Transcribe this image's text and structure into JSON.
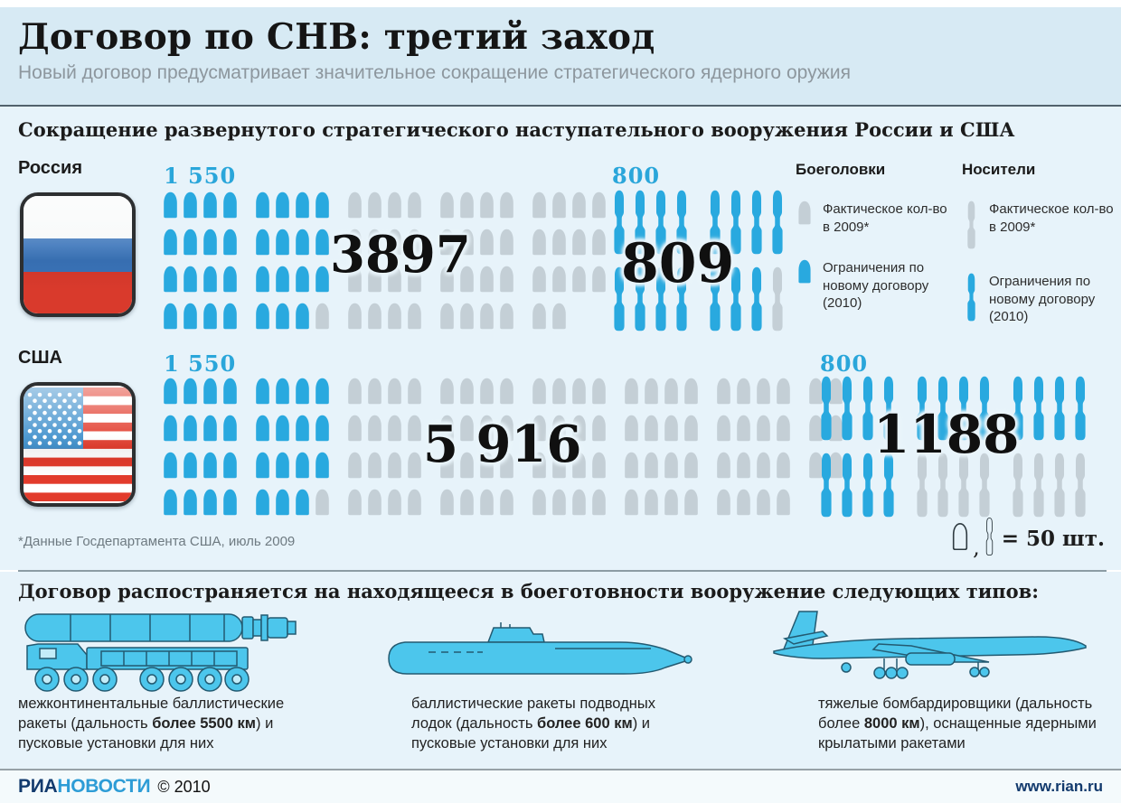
{
  "header": {
    "title": "Договор по СНВ: третий заход",
    "subtitle": "Новый договор предусматривает значительное сокращение стратегического ядерного оружия"
  },
  "section1": {
    "heading": "Сокращение развернутого стратегического наступательного вооружения России и США",
    "countries": [
      {
        "name": "Россия",
        "flag_icon": "russia-flag",
        "warheads": {
          "limit_label": "1 550",
          "actual_label": "3897",
          "rows": [
            [
              8,
              12
            ],
            [
              8,
              12
            ],
            [
              8,
              12
            ],
            [
              7,
              11
            ]
          ]
        },
        "carriers": {
          "limit_label": "800",
          "actual_label": "809",
          "rows": [
            [
              8,
              0
            ],
            [
              7,
              1
            ]
          ]
        }
      },
      {
        "name": "США",
        "flag_icon": "usa-flag",
        "warheads": {
          "limit_label": "1 550",
          "actual_label": "5 916",
          "rows": [
            [
              8,
              22
            ],
            [
              8,
              22
            ],
            [
              8,
              22
            ],
            [
              7,
              21
            ]
          ]
        },
        "carriers": {
          "limit_label": "800",
          "actual_label": "1188",
          "rows": [
            [
              12,
              0
            ],
            [
              4,
              8
            ]
          ]
        }
      }
    ],
    "legend": {
      "warheads_title": "Боеголовки",
      "carriers_title": "Носители",
      "actual_label": "Фактическое кол-во в 2009*",
      "limit_label": "Ограничения по новому договору (2010)",
      "icons": {
        "warhead": "warhead-icon",
        "carrier": "missile-icon"
      }
    },
    "footnote": "*Данные Госдепартамента США, июль 2009",
    "scale_note": {
      "comma": ",",
      "equals": "= 50 шт."
    }
  },
  "section2": {
    "heading": "Договор распостраняется на находящееся в боеготовности вооружение следующих типов:",
    "items": [
      {
        "icon": "icbm-launcher-icon",
        "caption": [
          {
            "t": "межконтинентальные баллистические ракеты (дальность "
          },
          {
            "t": "более 5500 км",
            "b": true
          },
          {
            "t": ") и пусковые установки для них"
          }
        ]
      },
      {
        "icon": "submarine-icon",
        "caption": [
          {
            "t": "баллистические ракеты подводных лодок (дальность "
          },
          {
            "t": "более 600 км",
            "b": true
          },
          {
            "t": ") и пусковые установки для них"
          }
        ]
      },
      {
        "icon": "heavy-bomber-icon",
        "caption": [
          {
            "t": "тяжелые бомбардировщики (дальность более "
          },
          {
            "t": "8000 км",
            "b": true
          },
          {
            "t": "), оснащенные ядерными крылатыми ракетами"
          }
        ]
      }
    ]
  },
  "footer": {
    "brand_ria": "РИА",
    "brand_novosti": "НОВОСТИ",
    "copyright": "© 2010",
    "site": "www.rian.ru"
  },
  "colors": {
    "accent_blue": "#29a9df",
    "icon_gray": "#c4cfd6",
    "limit_text": "#2aa6da",
    "vehicle_blue": "#4cc6ec"
  },
  "chart_data": {
    "type": "pictogram",
    "title": "Сокращение развернутого стратегического наступательного вооружения России и США",
    "unit_per_icon": 50,
    "categories": [
      "Россия",
      "США"
    ],
    "series": [
      {
        "name": "Боеголовки — фактическое кол-во в 2009",
        "values": [
          3897,
          5916
        ]
      },
      {
        "name": "Боеголовки — ограничения по новому договору (2010)",
        "values": [
          1550,
          1550
        ]
      },
      {
        "name": "Носители — фактическое кол-во в 2009",
        "values": [
          809,
          1188
        ]
      },
      {
        "name": "Носители — ограничения по новому договору (2010)",
        "values": [
          800,
          800
        ]
      }
    ],
    "legend_position": "right",
    "source_note": "*Данные Госдепартамента США, июль 2009"
  }
}
